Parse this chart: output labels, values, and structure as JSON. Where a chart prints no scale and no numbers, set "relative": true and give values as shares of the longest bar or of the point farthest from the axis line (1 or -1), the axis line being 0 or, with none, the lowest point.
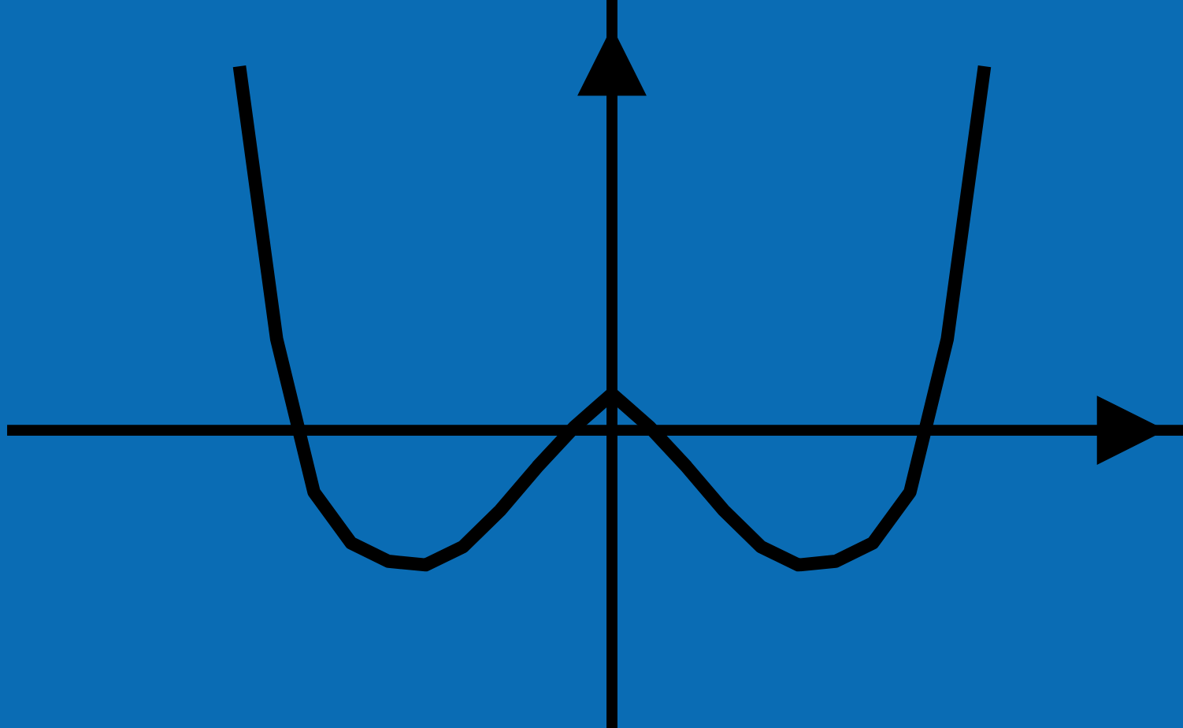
{
  "chart_data": {
    "type": "line",
    "relative": true,
    "legend": false,
    "marker": "none",
    "line_style": "solid",
    "categories": [
      null,
      null,
      null,
      null,
      null,
      null,
      null,
      null,
      null,
      null,
      null,
      null,
      null,
      null,
      null,
      null,
      null,
      null,
      null,
      null,
      null
    ],
    "series": [
      {
        "color": "#000000",
        "values": [
          1.0,
          0.25,
          -0.17,
          -0.31,
          -0.36,
          -0.37,
          -0.32,
          -0.22,
          -0.1,
          0.01,
          0.1,
          0.01,
          -0.1,
          -0.22,
          -0.32,
          -0.37,
          -0.36,
          -0.31,
          -0.17,
          0.25,
          1.0
        ]
      }
    ]
  }
}
